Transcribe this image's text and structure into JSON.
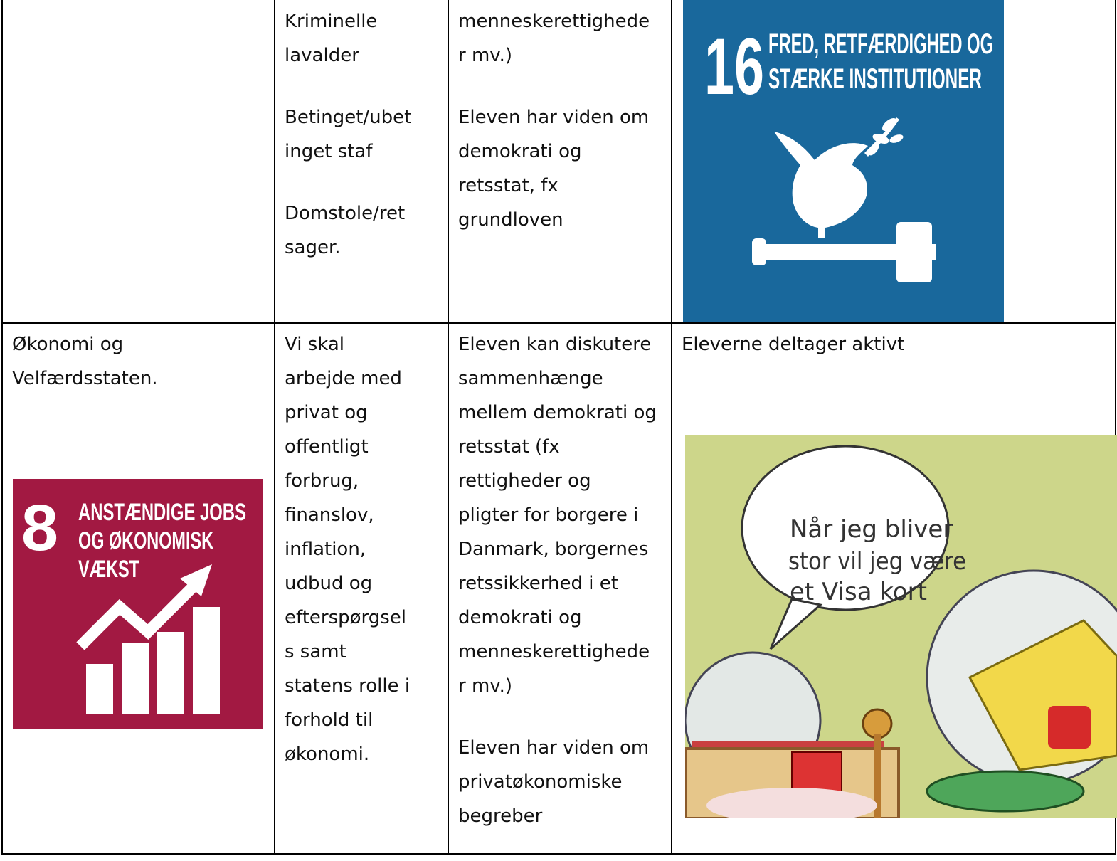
{
  "table": {
    "row1": {
      "col2": [
        [
          "Kriminelle",
          "lavalder"
        ],
        [
          "Betinget/ubet",
          "inget staf"
        ],
        [
          "Domstole/ret",
          "sager."
        ]
      ],
      "col3": [
        [
          "menneskerettighede",
          "r mv.)"
        ],
        [
          "Eleven har viden om",
          "demokrati og",
          "retsstat, fx",
          "grundloven"
        ]
      ],
      "col4": {
        "sdg": {
          "number": "16",
          "lines": [
            "FRED, RETFÆRDIGHED OG",
            "STÆRKE INSTITUTIONER"
          ]
        }
      }
    },
    "row2": {
      "col1": {
        "paragraphs": [
          [
            "Økonomi og",
            "Velfærdsstaten."
          ]
        ],
        "sdg": {
          "number": "8",
          "lines": [
            "ANSTÆNDIGE JOBS",
            "OG ØKONOMISK",
            "VÆKST"
          ]
        }
      },
      "col2": [
        [
          "Vi skal",
          "arbejde med",
          "privat og",
          "offentligt",
          "forbrug,",
          "finanslov,",
          "inflation,",
          "udbud og",
          "efterspørgsel",
          "s samt",
          "statens rolle i",
          "forhold til",
          "økonomi."
        ]
      ],
      "col3": [
        [
          "Eleven kan diskutere",
          "sammenhænge",
          "mellem demokrati og",
          "retsstat (fx",
          "rettigheder og",
          "pligter for borgere i",
          "Danmark, borgernes",
          "retssikkerhed i et",
          "demokrati og",
          "menneskerettighede",
          "r mv.)"
        ],
        [
          "Eleven har viden om",
          "privatøkonomiske",
          "begreber"
        ]
      ],
      "col4": {
        "paragraphs": [
          [
            "Eleverne deltager aktivt"
          ]
        ],
        "cartoon": {
          "speech": [
            "Når jeg bliver",
            "stor vil jeg være",
            "et Visa kort"
          ]
        }
      }
    }
  }
}
